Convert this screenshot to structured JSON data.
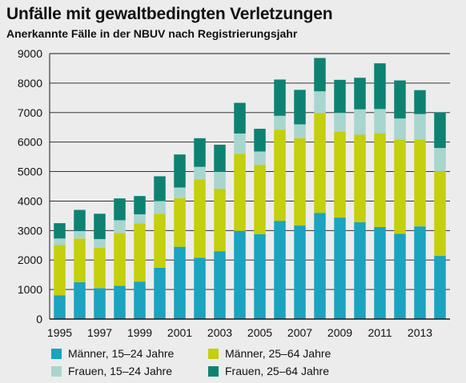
{
  "chart_data": {
    "type": "bar",
    "stacked": true,
    "title": "Unfälle mit gewaltbedingten Verletzungen",
    "subtitle": "Anerkannte Fälle in der NBUV nach Registrierungsjahr",
    "xlabel": "",
    "ylabel": "",
    "ylim": [
      0,
      9000
    ],
    "yticks": [
      "0",
      "1000",
      "2000",
      "3000",
      "4000",
      "5000",
      "6000",
      "7000",
      "8000",
      "9000"
    ],
    "grid": true,
    "legend_position": "bottom",
    "categories": [
      "1995",
      "1996",
      "1997",
      "1998",
      "1999",
      "2000",
      "2001",
      "2002",
      "2003",
      "2004",
      "2005",
      "2006",
      "2007",
      "2008",
      "2009",
      "2010",
      "2011",
      "2012",
      "2013",
      "2014"
    ],
    "xtick_labels": [
      "1995",
      "",
      "1997",
      "",
      "1999",
      "",
      "2001",
      "",
      "2003",
      "",
      "2005",
      "",
      "2007",
      "",
      "2009",
      "",
      "2011",
      "",
      "2013",
      ""
    ],
    "series": [
      {
        "name": "Männer, 15–24 Jahre",
        "color": "#1ba3c0",
        "values": [
          800,
          1250,
          1050,
          1130,
          1270,
          1740,
          2450,
          2080,
          2300,
          2990,
          2880,
          3330,
          3170,
          3600,
          3440,
          3280,
          3120,
          2890,
          3140,
          2140
        ]
      },
      {
        "name": "Männer, 25–64 Jahre",
        "color": "#c4cf0e",
        "values": [
          1710,
          1480,
          1370,
          1790,
          1970,
          1830,
          1650,
          2650,
          2120,
          2610,
          2350,
          3090,
          2960,
          3380,
          2920,
          2970,
          3180,
          3200,
          2950,
          2870
        ]
      },
      {
        "name": "Frauen, 15–24 Jahre",
        "color": "#a9d5cf",
        "values": [
          220,
          250,
          290,
          430,
          310,
          430,
          360,
          430,
          570,
          690,
          450,
          470,
          470,
          740,
          630,
          860,
          820,
          710,
          860,
          790
        ]
      },
      {
        "name": "Frauen, 25–64 Jahre",
        "color": "#0e8272",
        "values": [
          520,
          720,
          860,
          740,
          620,
          840,
          1120,
          970,
          920,
          1040,
          770,
          1230,
          1170,
          1130,
          1120,
          1070,
          1550,
          1290,
          810,
          1210
        ]
      }
    ]
  }
}
